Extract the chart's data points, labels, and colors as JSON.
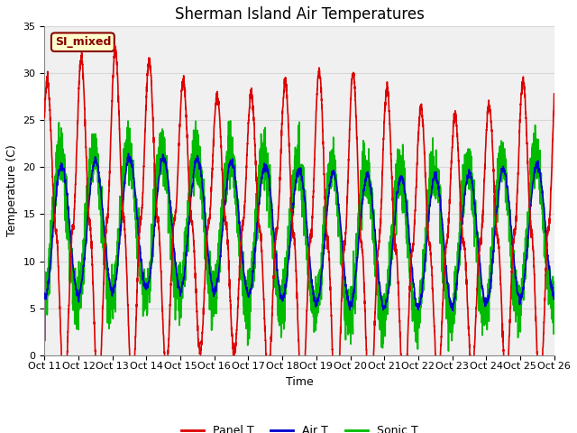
{
  "title": "Sherman Island Air Temperatures",
  "xlabel": "Time",
  "ylabel": "Temperature (C)",
  "ylim": [
    0,
    35
  ],
  "xlim": [
    0,
    360
  ],
  "plot_bg": "#f0f0f0",
  "fig_bg": "#ffffff",
  "grid_color": "#d8d8d8",
  "line_colors": {
    "panel": "#dd0000",
    "air": "#0000cc",
    "sonic": "#00bb00"
  },
  "line_widths": {
    "panel": 1.2,
    "air": 1.2,
    "sonic": 1.2
  },
  "legend_labels": [
    "Panel T",
    "Air T",
    "Sonic T"
  ],
  "annotation_text": "SI_mixed",
  "annotation_bg": "#ffffcc",
  "annotation_border": "#880000",
  "xtick_labels": [
    "Oct 11",
    "Oct 12",
    "Oct 13",
    "Oct 14",
    "Oct 15",
    "Oct 16",
    "Oct 17",
    "Oct 18",
    "Oct 19",
    "Oct 20",
    "Oct 21",
    "Oct 22",
    "Oct 23",
    "Oct 24",
    "Oct 25",
    "Oct 26"
  ],
  "xtick_positions": [
    0,
    24,
    48,
    72,
    96,
    120,
    144,
    168,
    192,
    216,
    240,
    264,
    288,
    312,
    336,
    360
  ],
  "title_fontsize": 12,
  "label_fontsize": 9,
  "tick_fontsize": 8
}
